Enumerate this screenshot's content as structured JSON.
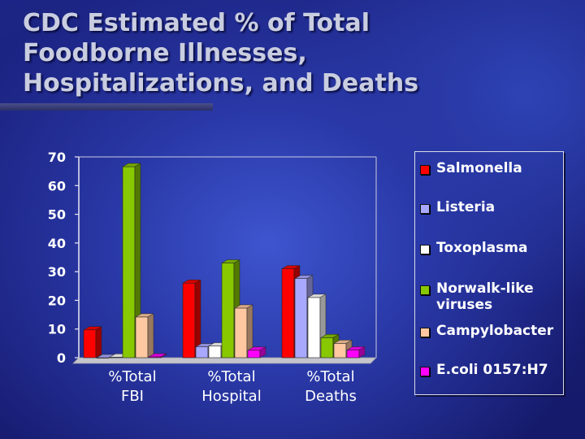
{
  "slide": {
    "title": "CDC Estimated % of Total\nFoodborne Illnesses,\nHospitalizations, and Deaths"
  },
  "colors": {
    "background": "#1f2a8f",
    "title_text": "#c9cde0",
    "axis_text": "#ffffff"
  },
  "chart_data": {
    "type": "bar",
    "title": "",
    "xlabel": "",
    "ylabel": "",
    "ylim": [
      0,
      70
    ],
    "yticks": [
      "0",
      "10",
      "20",
      "30",
      "40",
      "50",
      "60",
      "70"
    ],
    "grid": false,
    "legend_position": "right",
    "categories": [
      "%Total\nFBI",
      "%Total\nHospital",
      "%Total\nDeaths"
    ],
    "series": [
      {
        "name": "Salmonella",
        "color": "#ff0000",
        "values": [
          9.7,
          26.0,
          31.0
        ]
      },
      {
        "name": "Listeria",
        "color": "#a8a8ff",
        "values": [
          0.0,
          3.8,
          27.6
        ]
      },
      {
        "name": "Toxoplasma",
        "color": "#ffffff",
        "values": [
          0.2,
          4.1,
          21.0
        ]
      },
      {
        "name": "Norwalk-like\nviruses",
        "color": "#88c800",
        "values": [
          66.6,
          33.0,
          7.0
        ]
      },
      {
        "name": "Campylobacter",
        "color": "#ffc8a0",
        "values": [
          14.2,
          17.3,
          5.0
        ]
      },
      {
        "name": "E.coli 0157:H7",
        "color": "#ff00ff",
        "values": [
          0.3,
          2.6,
          2.7
        ]
      }
    ]
  }
}
